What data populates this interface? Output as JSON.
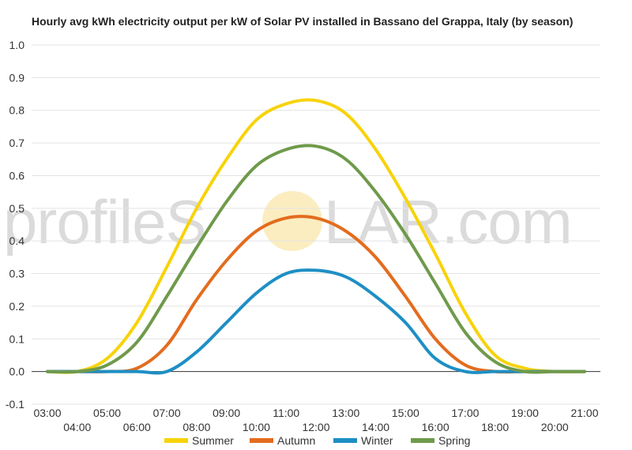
{
  "watermark": {
    "part1": "profileS",
    "part2": "LAR.com",
    "sun_color": "#f7d774"
  },
  "chart_data": {
    "type": "line",
    "title": "Hourly avg kWh electricity output per kW of Solar PV installed in Bassano del Grappa, Italy (by season)",
    "xlabel": "",
    "ylabel": "",
    "ylim": [
      -0.1,
      1.0
    ],
    "yticks": [
      "-0.1",
      "0.0",
      "0.1",
      "0.2",
      "0.3",
      "0.4",
      "0.5",
      "0.6",
      "0.7",
      "0.8",
      "0.9",
      "1.0"
    ],
    "x": [
      "03:00",
      "04:00",
      "05:00",
      "06:00",
      "07:00",
      "08:00",
      "09:00",
      "10:00",
      "11:00",
      "12:00",
      "13:00",
      "14:00",
      "15:00",
      "16:00",
      "17:00",
      "18:00",
      "19:00",
      "20:00",
      "21:00"
    ],
    "grid": true,
    "legend_position": "bottom",
    "series": [
      {
        "name": "Summer",
        "color": "#f7d30b",
        "values": [
          0.0,
          0.0,
          0.04,
          0.15,
          0.32,
          0.5,
          0.65,
          0.77,
          0.82,
          0.83,
          0.79,
          0.68,
          0.53,
          0.36,
          0.18,
          0.05,
          0.01,
          0.0,
          0.0
        ]
      },
      {
        "name": "Autumn",
        "color": "#e36c1e",
        "values": [
          0.0,
          0.0,
          0.0,
          0.01,
          0.08,
          0.22,
          0.34,
          0.43,
          0.47,
          0.47,
          0.43,
          0.35,
          0.23,
          0.1,
          0.02,
          0.0,
          0.0,
          0.0,
          0.0
        ]
      },
      {
        "name": "Winter",
        "color": "#1e8fc4",
        "values": [
          0.0,
          0.0,
          0.0,
          0.0,
          0.0,
          0.06,
          0.15,
          0.24,
          0.3,
          0.31,
          0.29,
          0.23,
          0.15,
          0.04,
          0.0,
          0.0,
          0.0,
          0.0,
          0.0
        ]
      },
      {
        "name": "Spring",
        "color": "#6f9a4b",
        "values": [
          0.0,
          0.0,
          0.02,
          0.09,
          0.23,
          0.38,
          0.52,
          0.63,
          0.68,
          0.69,
          0.65,
          0.55,
          0.42,
          0.27,
          0.12,
          0.03,
          0.0,
          0.0,
          0.0
        ]
      }
    ]
  }
}
